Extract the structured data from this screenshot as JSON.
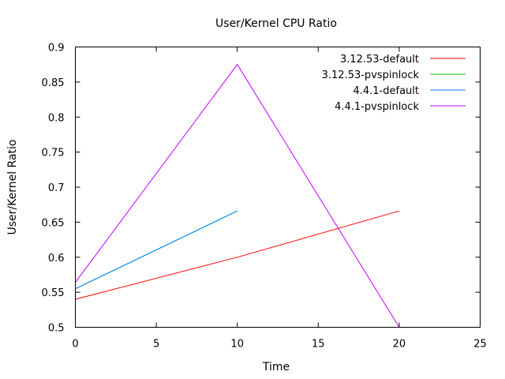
{
  "chart_data": {
    "type": "line",
    "title": "User/Kernel CPU Ratio",
    "xlabel": "Time",
    "ylabel": "User/Kernel Ratio",
    "xlim": [
      0,
      25
    ],
    "ylim": [
      0.5,
      0.9
    ],
    "xticks": [
      0,
      5,
      10,
      15,
      20,
      25
    ],
    "yticks": [
      0.5,
      0.55,
      0.6,
      0.65,
      0.7,
      0.75,
      0.8,
      0.85,
      0.9
    ],
    "xtick_labels": [
      "0",
      "5",
      "10",
      "15",
      "20",
      "25"
    ],
    "ytick_labels": [
      "0.5",
      "0.55",
      "0.6",
      "0.65",
      "0.7",
      "0.75",
      "0.8",
      "0.85",
      "0.9"
    ],
    "grid": false,
    "legend_position": "top-right",
    "series": [
      {
        "name": "3.12.53-default",
        "color": "#ff0000",
        "points": [
          [
            0,
            0.54
          ],
          [
            10,
            0.6
          ],
          [
            20,
            0.666
          ]
        ]
      },
      {
        "name": "3.12.53-pvspinlock",
        "color": "#00c000",
        "points": [
          [
            0,
            0.555
          ],
          [
            10,
            0.666
          ]
        ]
      },
      {
        "name": "4.4.1-default",
        "color": "#0080ff",
        "points": [
          [
            0,
            0.555
          ],
          [
            10,
            0.666
          ]
        ]
      },
      {
        "name": "4.4.1-pvspinlock",
        "color": "#c000ff",
        "points": [
          [
            0,
            0.564
          ],
          [
            10,
            0.875
          ],
          [
            20,
            0.5
          ]
        ]
      }
    ]
  }
}
